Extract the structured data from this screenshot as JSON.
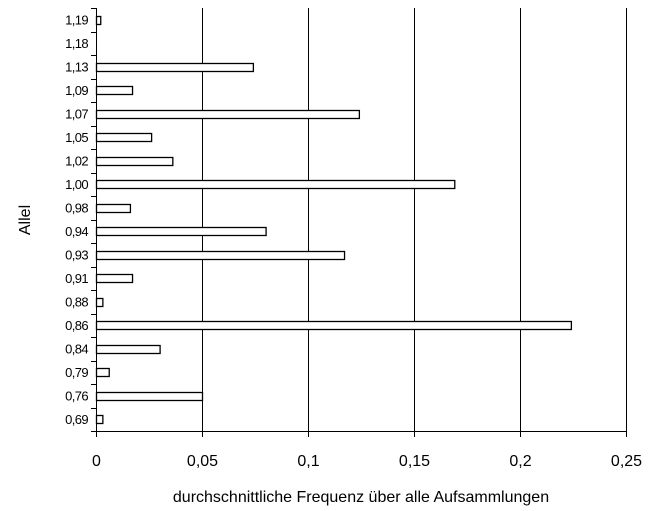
{
  "chart_data": {
    "type": "bar",
    "orientation": "horizontal",
    "categories": [
      "0,69",
      "0,76",
      "0,79",
      "0,84",
      "0,86",
      "0,88",
      "0,91",
      "0,93",
      "0,94",
      "0,98",
      "1,00",
      "1,02",
      "1,05",
      "1,07",
      "1,09",
      "1,13",
      "1,18",
      "1,19"
    ],
    "values": [
      0.003,
      0.05,
      0.006,
      0.03,
      0.224,
      0.003,
      0.017,
      0.117,
      0.08,
      0.016,
      0.169,
      0.036,
      0.026,
      0.124,
      0.017,
      0.074,
      0.0,
      0.002
    ],
    "xlabel": "durchschnittliche Frequenz über alle Aufsammlungen",
    "ylabel": "Allel",
    "xlim": [
      0,
      0.25
    ],
    "x_ticks": [
      0,
      0.05,
      0.1,
      0.15,
      0.2,
      0.25
    ],
    "x_tick_labels": [
      "0",
      "0,05",
      "0,1",
      "0,15",
      "0,2",
      "0,25"
    ],
    "grid": "vertical",
    "legend": "none",
    "colors": {
      "bar_fill": "#ffffff",
      "bar_stroke": "#000000",
      "grid": "#000000",
      "axis": "#000000"
    }
  }
}
